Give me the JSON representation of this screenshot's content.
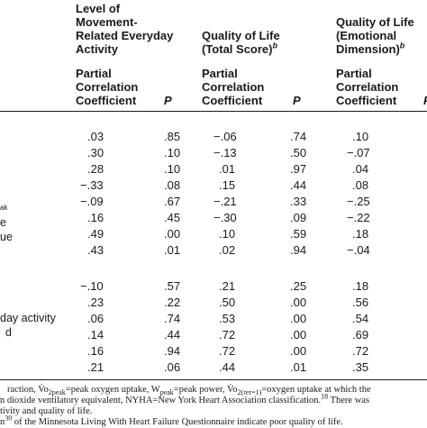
{
  "columns": {
    "activity": {
      "title_lines": [
        "Level of",
        "Movement-",
        "Related Everyday",
        "Activity"
      ],
      "coef_lines": [
        "Partial",
        "Correlation",
        "Coefficient"
      ],
      "p_label": "P"
    },
    "qol_total": {
      "title_line1": "Quality of Life",
      "title_line2": "(Total Score)",
      "title_sup": "b",
      "coef_lines": [
        "Partial",
        "Correlation",
        "Coefficient"
      ],
      "p_label": "P"
    },
    "qol_emotional": {
      "title_line1": "Quality of Life",
      "title_line2": "(Emotional",
      "title_line3": "Dimension)",
      "title_sup": "b",
      "coef_lines": [
        "Partial",
        "Correlation",
        "Coefficient"
      ],
      "p_label": "P"
    }
  },
  "row_label_fragments": {
    "peak_sub": "ak",
    "e": "e",
    "ue": "ue",
    "day_activity": "day activity",
    "d": "d"
  },
  "section1_rows": [
    {
      "a_coef": ".03",
      "a_p": ".85",
      "t_coef": "−.06",
      "t_p": ".74",
      "e_coef": ".10"
    },
    {
      "a_coef": ".30",
      "a_p": ".10",
      "t_coef": "−.13",
      "t_p": ".50",
      "e_coef": "−.07"
    },
    {
      "a_coef": ".28",
      "a_p": ".10",
      "t_coef": ".01",
      "t_p": ".97",
      "e_coef": ".04"
    },
    {
      "a_coef": "−.33",
      "a_p": ".08",
      "t_coef": ".15",
      "t_p": ".44",
      "e_coef": ".08"
    },
    {
      "a_coef": "−.09",
      "a_p": ".67",
      "t_coef": "−.21",
      "t_p": ".33",
      "e_coef": "−.25"
    },
    {
      "a_coef": ".16",
      "a_p": ".45",
      "t_coef": "−.30",
      "t_p": ".09",
      "e_coef": "−.22"
    },
    {
      "a_coef": ".49",
      "a_p": ".00",
      "t_coef": ".10",
      "t_p": ".59",
      "e_coef": ".18"
    },
    {
      "a_coef": ".43",
      "a_p": ".01",
      "t_coef": ".02",
      "t_p": ".94",
      "e_coef": "−.04"
    }
  ],
  "section2_rows": [
    {
      "a_coef": "−.10",
      "a_p": ".57",
      "t_coef": ".21",
      "t_p": ".25",
      "e_coef": ".18"
    },
    {
      "a_coef": ".23",
      "a_p": ".22",
      "t_coef": ".50",
      "t_p": ".00",
      "e_coef": ".56"
    },
    {
      "a_coef": ".06",
      "a_p": ".74",
      "t_coef": ".53",
      "t_p": ".00",
      "e_coef": ".54"
    },
    {
      "a_coef": ".14",
      "a_p": ".44",
      "t_coef": ".72",
      "t_p": ".00",
      "e_coef": ".69"
    },
    {
      "a_coef": ".16",
      "a_p": ".94",
      "t_coef": ".72",
      "t_p": ".00",
      "e_coef": ".72"
    },
    {
      "a_coef": ".21",
      "a_p": ".06",
      "t_coef": ".44",
      "t_p": ".01",
      "e_coef": ".35"
    }
  ],
  "footnotes": {
    "line1_pre": "raction, V̇o",
    "line1_sub1": "2peak",
    "line1_mid1": "=peak oxygen uptake, W",
    "line1_sub2": "peak",
    "line1_mid2": "=peak power, V̇o",
    "line1_sub3": "2(rer=1)",
    "line1_post": "=oxygen uptake at which the",
    "line2_pre": "n dioxide ventilatory equivalent, NYHA=New York Heart Association classification.",
    "line2_sup": "18",
    "line2_post": " There was",
    "line3": "tivity and quality of life.",
    "line4_pre": "n",
    "line4_sup": "30",
    "line4_post": " of the Minnesota Living With Heart Failure Questionnaire indicate poor quality of life."
  }
}
